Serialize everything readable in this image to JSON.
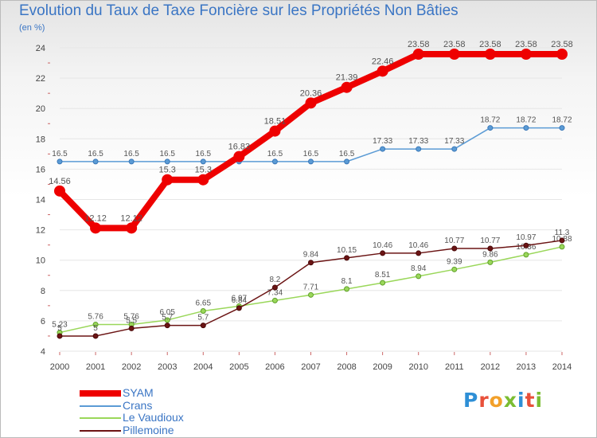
{
  "title": "Evolution du Taux de Taxe Foncière sur les Propriétés Non Bâties",
  "ylabel_text": "(en %)",
  "logo": {
    "letters": [
      {
        "ch": "P",
        "color": "#2e8fd6"
      },
      {
        "ch": "r",
        "color": "#e8503a"
      },
      {
        "ch": "o",
        "color": "#f2a02a"
      },
      {
        "ch": "x",
        "color": "#7bbd32"
      },
      {
        "ch": "i",
        "color": "#2e8fd6"
      },
      {
        "ch": "t",
        "color": "#e8503a"
      },
      {
        "ch": "i",
        "color": "#7bbd32"
      }
    ]
  },
  "chart_data": {
    "type": "line",
    "title": "Evolution du Taux de Taxe Foncière sur les Propriétés Non Bâties",
    "ylabel": "(en %)",
    "xlabel": "",
    "ylim": [
      4,
      24
    ],
    "yticks": [
      4,
      6,
      8,
      10,
      12,
      14,
      16,
      18,
      20,
      22,
      24
    ],
    "x": [
      "2000",
      "2001",
      "2002",
      "2003",
      "2004",
      "2005",
      "2006",
      "2007",
      "2008",
      "2009",
      "2010",
      "2011",
      "2012",
      "2013",
      "2014"
    ],
    "series": [
      {
        "name": "SYAM",
        "color": "#ee0000",
        "values": [
          14.56,
          12.12,
          12.12,
          15.3,
          15.3,
          16.83,
          18.51,
          20.36,
          21.39,
          22.46,
          23.58,
          23.58,
          23.58,
          23.58,
          23.58
        ],
        "labels": [
          "14.56",
          "12.12",
          "12.12",
          "15.3",
          "15.3",
          "16.83",
          "18.51",
          "20.36",
          "21.39",
          "22.46",
          "23.58",
          "23.58",
          "23.58",
          "23.58",
          "23.58"
        ]
      },
      {
        "name": "Crans",
        "color": "#5b9bd5",
        "values": [
          16.5,
          16.5,
          16.5,
          16.5,
          16.5,
          16.5,
          16.5,
          16.5,
          16.5,
          17.33,
          17.33,
          17.33,
          18.72,
          18.72,
          18.72
        ],
        "labels": [
          "16.5",
          "16.5",
          "16.5",
          "16.5",
          "16.5",
          "",
          "16.5",
          "16.5",
          "16.5",
          "17.33",
          "17.33",
          "17.33",
          "18.72",
          "18.72",
          "18.72"
        ]
      },
      {
        "name": "Le Vaudioux",
        "color": "#9ad75a",
        "values": [
          5.23,
          5.76,
          5.76,
          6.05,
          6.65,
          6.97,
          7.34,
          7.71,
          8.1,
          8.51,
          8.94,
          9.39,
          9.86,
          10.36,
          10.88
        ],
        "labels": [
          "5.23",
          "5.76",
          "5.76",
          "6.05",
          "6.65",
          "6.97",
          "7.34",
          "7.71",
          "8.1",
          "8.51",
          "8.94",
          "9.39",
          "9.86",
          "10.36",
          "10.88"
        ]
      },
      {
        "name": "Pillemoine",
        "color": "#6b1414",
        "values": [
          5,
          5,
          5.5,
          5.7,
          5.7,
          6.84,
          8.2,
          9.84,
          10.15,
          10.46,
          10.46,
          10.77,
          10.77,
          10.97,
          11.3
        ],
        "labels": [
          "5",
          "5",
          "5.5",
          "5.7",
          "5.7",
          "6.84",
          "8.2",
          "9.84",
          "10.15",
          "10.46",
          "10.46",
          "10.77",
          "10.77",
          "10.97",
          "11.3"
        ]
      }
    ]
  }
}
